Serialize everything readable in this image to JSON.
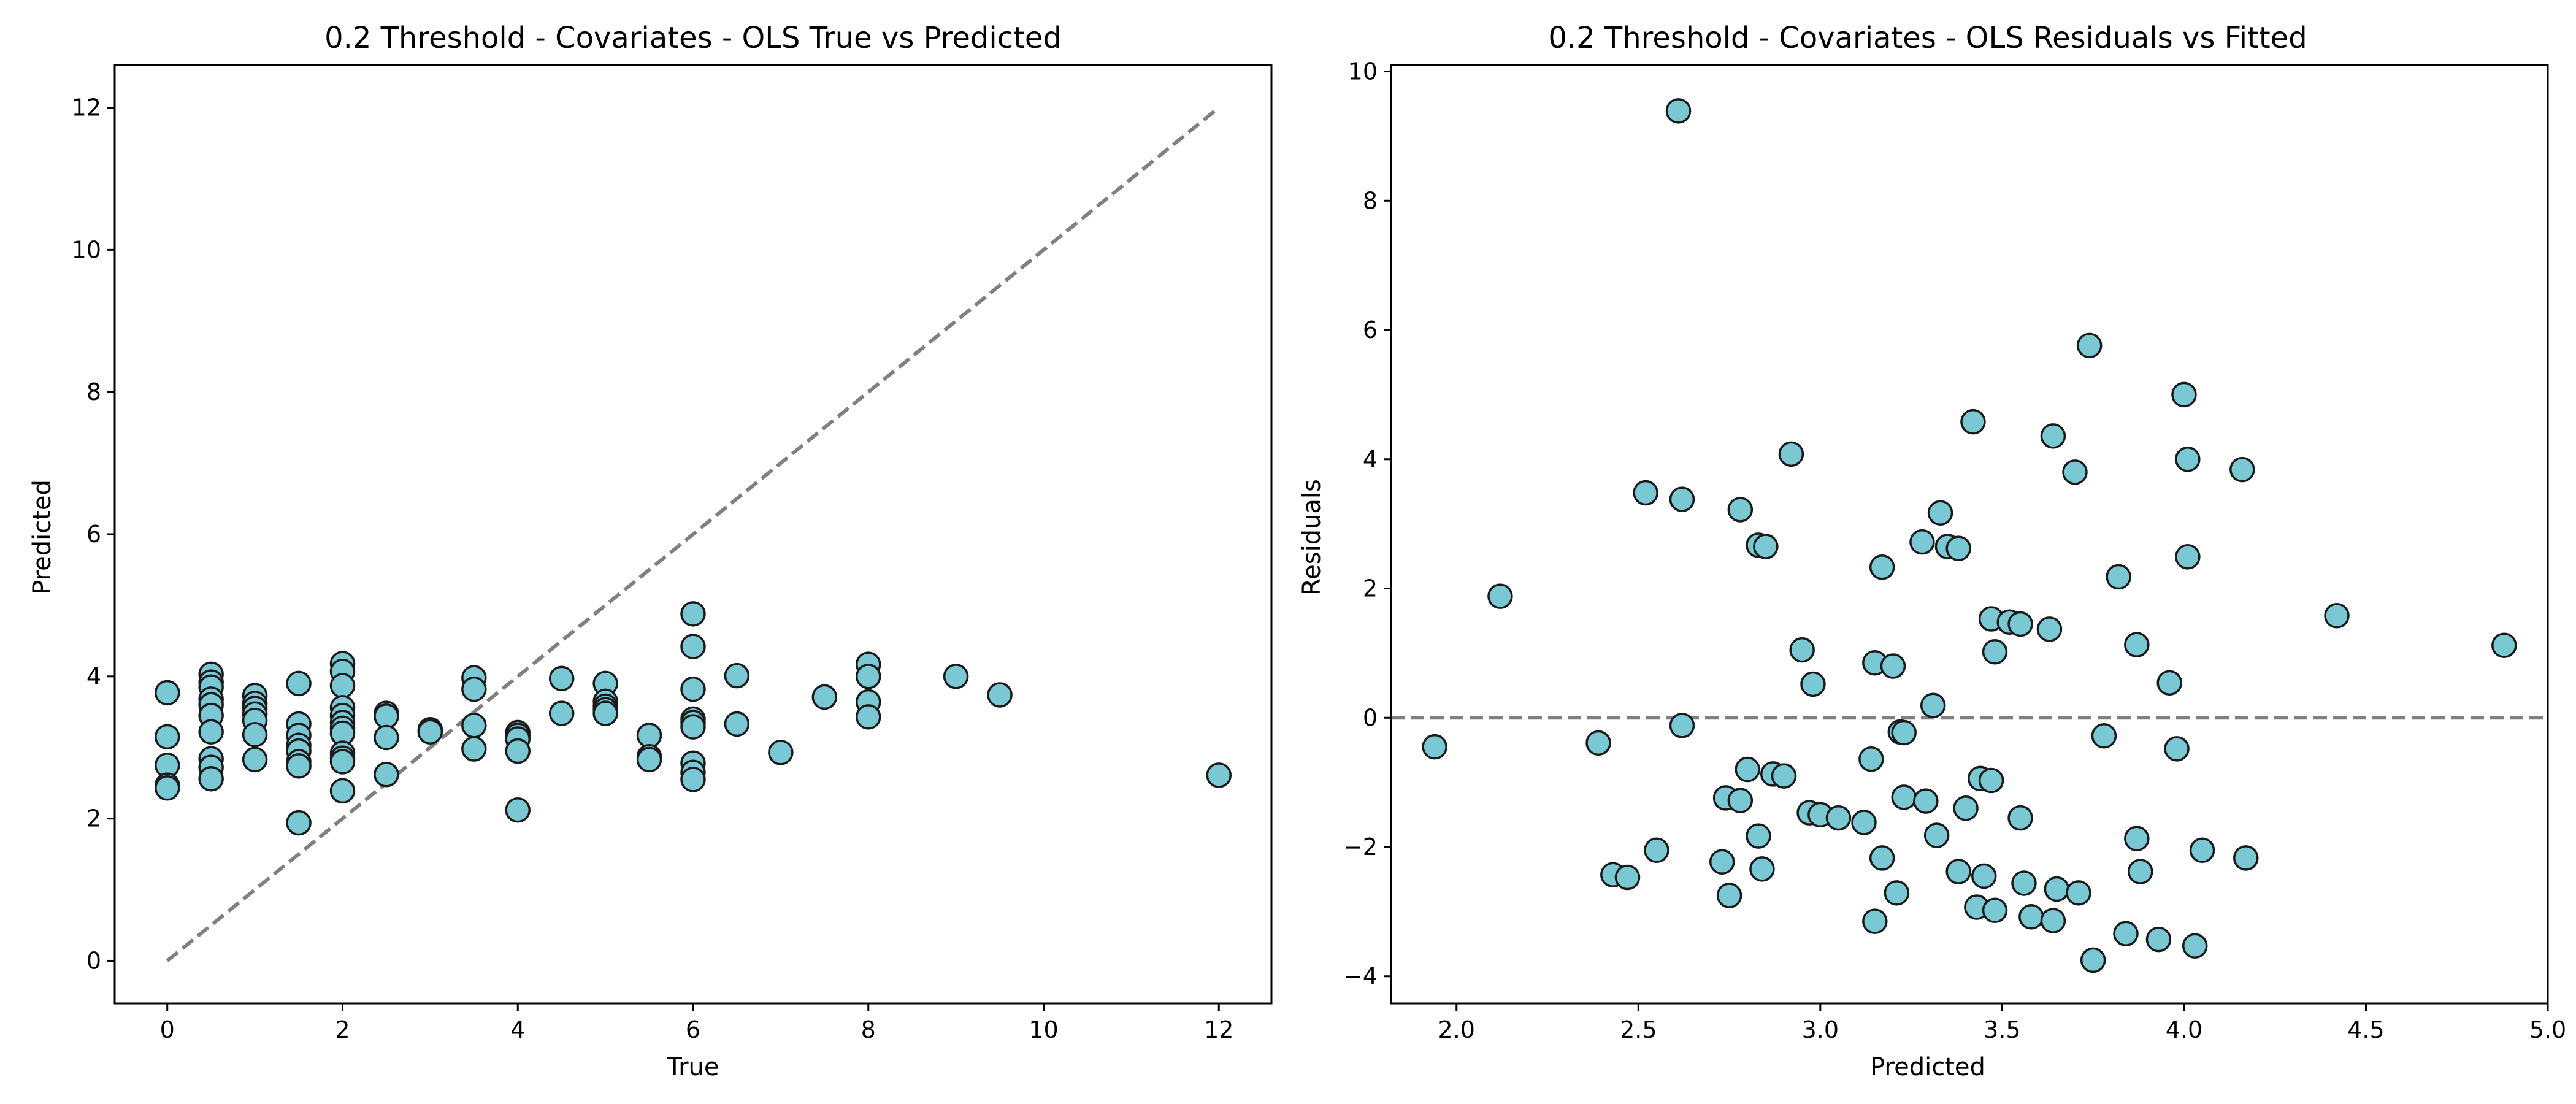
{
  "chart_data": [
    {
      "type": "scatter",
      "title": "0.2 Threshold - Covariates - OLS True vs Predicted",
      "xlabel": "True",
      "ylabel": "Predicted",
      "xlim": [
        -0.6,
        12.6
      ],
      "ylim": [
        -0.6,
        12.6
      ],
      "xticks": [
        "0",
        "2",
        "4",
        "6",
        "8",
        "10",
        "12"
      ],
      "yticks": [
        "0",
        "2",
        "4",
        "6",
        "8",
        "10",
        "12"
      ],
      "point_color": "#7ac8d4",
      "reference_line": {
        "style": "dashed",
        "color": "#808080",
        "from": [
          0,
          0
        ],
        "to": [
          12,
          12
        ]
      },
      "grid": false,
      "points": [
        [
          0,
          3.77
        ],
        [
          0,
          3.15
        ],
        [
          0,
          2.75
        ],
        [
          0,
          2.47
        ],
        [
          0,
          2.43
        ],
        [
          0.5,
          4.03
        ],
        [
          0.5,
          3.92
        ],
        [
          0.5,
          3.85
        ],
        [
          0.5,
          3.68
        ],
        [
          0.5,
          3.6
        ],
        [
          0.5,
          3.45
        ],
        [
          0.5,
          3.22
        ],
        [
          0.5,
          2.84
        ],
        [
          0.5,
          2.72
        ],
        [
          0.5,
          2.56
        ],
        [
          1,
          3.73
        ],
        [
          1,
          3.62
        ],
        [
          1,
          3.55
        ],
        [
          1,
          3.47
        ],
        [
          1,
          3.38
        ],
        [
          1,
          3.18
        ],
        [
          1,
          2.83
        ],
        [
          1.5,
          3.9
        ],
        [
          1.5,
          3.33
        ],
        [
          1.5,
          3.17
        ],
        [
          1.5,
          3.03
        ],
        [
          1.5,
          2.95
        ],
        [
          1.5,
          2.8
        ],
        [
          1.5,
          2.74
        ],
        [
          1.5,
          1.94
        ],
        [
          2,
          4.18
        ],
        [
          2,
          4.07
        ],
        [
          2,
          3.87
        ],
        [
          2,
          3.56
        ],
        [
          2,
          3.45
        ],
        [
          2,
          3.35
        ],
        [
          2,
          3.27
        ],
        [
          2,
          3.2
        ],
        [
          2,
          2.92
        ],
        [
          2,
          2.85
        ],
        [
          2,
          2.8
        ],
        [
          2,
          2.39
        ],
        [
          2.5,
          3.48
        ],
        [
          2.5,
          3.44
        ],
        [
          2.5,
          3.14
        ],
        [
          2.5,
          2.62
        ],
        [
          3,
          3.25
        ],
        [
          3,
          3.22
        ],
        [
          3.5,
          3.98
        ],
        [
          3.5,
          3.82
        ],
        [
          3.5,
          3.31
        ],
        [
          3.5,
          2.98
        ],
        [
          4,
          3.21
        ],
        [
          4,
          3.17
        ],
        [
          4,
          3.12
        ],
        [
          4,
          2.95
        ],
        [
          4,
          2.12
        ],
        [
          4.5,
          3.97
        ],
        [
          4.5,
          3.48
        ],
        [
          5,
          3.9
        ],
        [
          5,
          3.65
        ],
        [
          5,
          3.58
        ],
        [
          5,
          3.53
        ],
        [
          5,
          3.48
        ],
        [
          5.5,
          3.17
        ],
        [
          5.5,
          2.87
        ],
        [
          5.5,
          2.83
        ],
        [
          6,
          4.88
        ],
        [
          6,
          4.42
        ],
        [
          6,
          3.82
        ],
        [
          6,
          3.4
        ],
        [
          6,
          3.35
        ],
        [
          6,
          3.29
        ],
        [
          6,
          2.78
        ],
        [
          6,
          2.65
        ],
        [
          6,
          2.55
        ],
        [
          6.5,
          4.01
        ],
        [
          6.5,
          3.33
        ],
        [
          7,
          2.93
        ],
        [
          7.5,
          3.71
        ],
        [
          8,
          4.17
        ],
        [
          8,
          4.0
        ],
        [
          8,
          3.64
        ],
        [
          8,
          3.43
        ],
        [
          9,
          4.0
        ],
        [
          9.5,
          3.74
        ],
        [
          12,
          2.61
        ]
      ]
    },
    {
      "type": "scatter",
      "title": "0.2 Threshold - Covariates - OLS Residuals vs Fitted",
      "xlabel": "Predicted",
      "ylabel": "Residuals",
      "xlim": [
        1.82,
        5.0
      ],
      "ylim": [
        -4.42,
        10.1
      ],
      "xticks": [
        "2.0",
        "2.5",
        "3.0",
        "3.5",
        "4.0",
        "4.5",
        "5.0"
      ],
      "yticks": [
        "−4",
        "−2",
        "0",
        "2",
        "4",
        "6",
        "8",
        "10"
      ],
      "point_color": "#7ac8d4",
      "reference_line": {
        "style": "dashed",
        "color": "#808080",
        "y": 0
      },
      "grid": false,
      "points": [
        [
          1.94,
          -0.45
        ],
        [
          2.12,
          1.88
        ],
        [
          2.39,
          -0.39
        ],
        [
          2.43,
          -2.43
        ],
        [
          2.47,
          -2.47
        ],
        [
          2.52,
          3.48
        ],
        [
          2.55,
          -2.05
        ],
        [
          2.61,
          9.39
        ],
        [
          2.62,
          -0.12
        ],
        [
          2.62,
          3.38
        ],
        [
          2.73,
          -2.23
        ],
        [
          2.74,
          -1.24
        ],
        [
          2.75,
          -2.75
        ],
        [
          2.78,
          3.22
        ],
        [
          2.78,
          -1.28
        ],
        [
          2.8,
          -0.8
        ],
        [
          2.83,
          2.67
        ],
        [
          2.83,
          -1.83
        ],
        [
          2.84,
          -2.34
        ],
        [
          2.85,
          2.65
        ],
        [
          2.87,
          -0.87
        ],
        [
          2.9,
          -0.9
        ],
        [
          2.92,
          4.08
        ],
        [
          2.95,
          1.05
        ],
        [
          2.97,
          -1.47
        ],
        [
          2.98,
          0.52
        ],
        [
          3.0,
          -1.5
        ],
        [
          3.05,
          -1.55
        ],
        [
          3.12,
          -1.62
        ],
        [
          3.14,
          -0.64
        ],
        [
          3.15,
          0.85
        ],
        [
          3.15,
          -3.15
        ],
        [
          3.17,
          2.33
        ],
        [
          3.17,
          -2.17
        ],
        [
          3.2,
          0.8
        ],
        [
          3.21,
          -2.71
        ],
        [
          3.22,
          -0.22
        ],
        [
          3.23,
          -0.23
        ],
        [
          3.23,
          -1.23
        ],
        [
          3.28,
          2.72
        ],
        [
          3.29,
          -1.29
        ],
        [
          3.31,
          0.19
        ],
        [
          3.32,
          -1.82
        ],
        [
          3.33,
          3.17
        ],
        [
          3.35,
          2.65
        ],
        [
          3.38,
          2.62
        ],
        [
          3.38,
          -2.38
        ],
        [
          3.4,
          -1.4
        ],
        [
          3.42,
          4.58
        ],
        [
          3.43,
          -2.93
        ],
        [
          3.44,
          -0.94
        ],
        [
          3.45,
          -2.45
        ],
        [
          3.47,
          -0.97
        ],
        [
          3.47,
          1.53
        ],
        [
          3.48,
          1.02
        ],
        [
          3.48,
          -2.98
        ],
        [
          3.52,
          1.48
        ],
        [
          3.55,
          -1.55
        ],
        [
          3.56,
          -2.56
        ],
        [
          3.55,
          1.45
        ],
        [
          3.58,
          -3.08
        ],
        [
          3.63,
          1.37
        ],
        [
          3.64,
          4.36
        ],
        [
          3.64,
          -3.14
        ],
        [
          3.65,
          -2.65
        ],
        [
          3.7,
          3.8
        ],
        [
          3.71,
          -2.71
        ],
        [
          3.74,
          5.76
        ],
        [
          3.75,
          -3.75
        ],
        [
          3.78,
          -0.28
        ],
        [
          3.82,
          2.18
        ],
        [
          3.84,
          -3.34
        ],
        [
          3.87,
          1.13
        ],
        [
          3.87,
          -1.87
        ],
        [
          3.88,
          -2.38
        ],
        [
          3.93,
          -3.43
        ],
        [
          3.96,
          0.54
        ],
        [
          3.98,
          -0.48
        ],
        [
          4.0,
          5.0
        ],
        [
          4.01,
          4.0
        ],
        [
          4.01,
          2.49
        ],
        [
          4.03,
          -3.53
        ],
        [
          4.05,
          -2.05
        ],
        [
          4.16,
          3.84
        ],
        [
          4.17,
          -2.17
        ],
        [
          4.42,
          1.58
        ],
        [
          4.88,
          1.12
        ]
      ]
    }
  ]
}
